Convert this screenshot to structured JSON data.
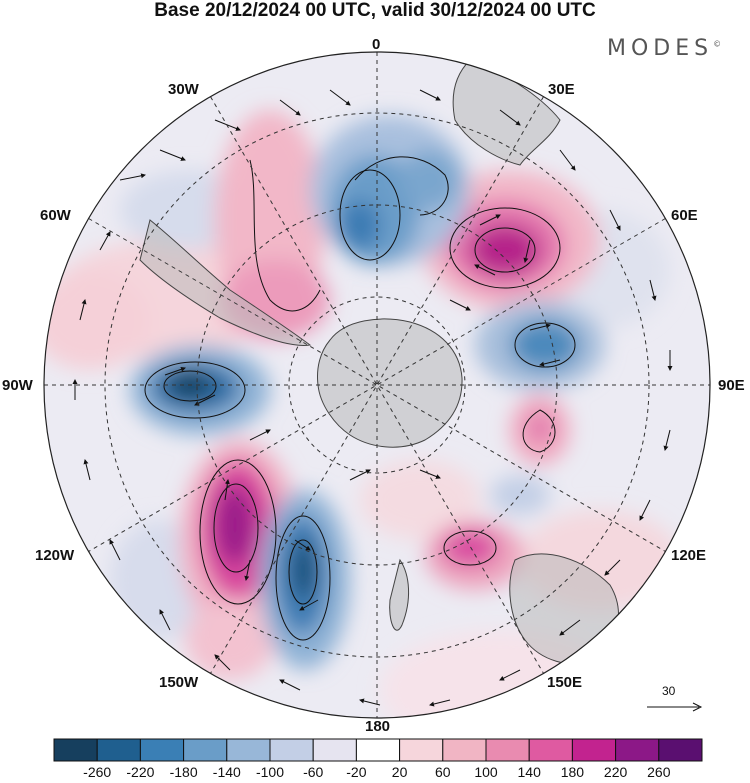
{
  "title": "Base 20/12/2024 00 UTC, valid 30/12/2024 00 UTC",
  "brand": "MODES",
  "brand_mark": "©",
  "longitude_labels": {
    "l0": "0",
    "l30e": "30E",
    "l60e": "60E",
    "l90e": "90E",
    "l120e": "120E",
    "l150e": "150E",
    "l180": "180",
    "l150w": "150W",
    "l120w": "120W",
    "l90w": "90W",
    "l60w": "60W",
    "l30w": "30W"
  },
  "reference_vector": {
    "value": "30"
  },
  "colorbar": {
    "labels": [
      "-260",
      "-220",
      "-180",
      "-140",
      "-100",
      "-60",
      "-20",
      "20",
      "60",
      "100",
      "140",
      "180",
      "220",
      "260"
    ],
    "colors": [
      "#163f5e",
      "#1f5f8f",
      "#3a7fb5",
      "#6a9dc8",
      "#98b7d8",
      "#c3cfe6",
      "#e6e4f0",
      "#ffffff",
      "#f6d6dc",
      "#f1b5c4",
      "#e98bb0",
      "#df5aa1",
      "#c2238f",
      "#8c1887",
      "#5a0f70"
    ]
  },
  "colors": {
    "land": "#b9b9b9",
    "coast": "#444444",
    "grid": "#333333"
  }
}
